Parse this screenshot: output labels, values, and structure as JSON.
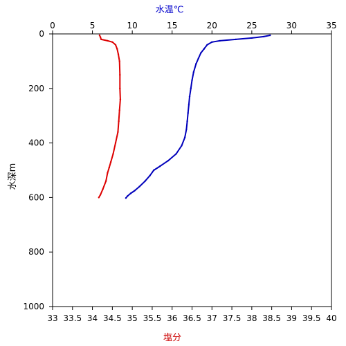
{
  "chart_data": {
    "type": "line",
    "x_top": {
      "label": "水温℃",
      "label_color": "#0000cc",
      "range": [
        0,
        35
      ],
      "ticks": [
        "0",
        "5",
        "10",
        "15",
        "20",
        "25",
        "30",
        "35"
      ]
    },
    "x_bottom": {
      "label": "塩分",
      "label_color": "#cc0000",
      "range": [
        33,
        40
      ],
      "ticks": [
        "33",
        "33.5",
        "34",
        "34.5",
        "35",
        "35.5",
        "36",
        "36.5",
        "37",
        "37.5",
        "38",
        "38.5",
        "39",
        "39.5",
        "40"
      ]
    },
    "y": {
      "label": "水深m",
      "range": [
        0,
        1000
      ],
      "inverted": true,
      "ticks": [
        "0",
        "200",
        "400",
        "600",
        "800",
        "1000"
      ]
    },
    "grid": false,
    "series": [
      {
        "axis": "bottom",
        "color": "#dd0000",
        "points": [
          [
            34.18,
            5
          ],
          [
            34.2,
            12
          ],
          [
            34.22,
            20
          ],
          [
            34.38,
            25
          ],
          [
            34.5,
            30
          ],
          [
            34.58,
            40
          ],
          [
            34.62,
            55
          ],
          [
            34.65,
            75
          ],
          [
            34.68,
            100
          ],
          [
            34.69,
            150
          ],
          [
            34.69,
            200
          ],
          [
            34.7,
            240
          ],
          [
            34.68,
            280
          ],
          [
            34.66,
            320
          ],
          [
            34.64,
            360
          ],
          [
            34.58,
            400
          ],
          [
            34.52,
            440
          ],
          [
            34.46,
            470
          ],
          [
            34.42,
            490
          ],
          [
            34.38,
            510
          ],
          [
            34.34,
            540
          ],
          [
            34.26,
            570
          ],
          [
            34.2,
            590
          ],
          [
            34.16,
            600
          ]
        ]
      },
      {
        "axis": "top",
        "color": "#0000bb",
        "points": [
          [
            27.3,
            5
          ],
          [
            26.5,
            10
          ],
          [
            25,
            15
          ],
          [
            23,
            20
          ],
          [
            21,
            25
          ],
          [
            20,
            30
          ],
          [
            19.4,
            40
          ],
          [
            19,
            55
          ],
          [
            18.6,
            70
          ],
          [
            18.3,
            90
          ],
          [
            18,
            110
          ],
          [
            17.7,
            140
          ],
          [
            17.5,
            170
          ],
          [
            17.35,
            200
          ],
          [
            17.2,
            230
          ],
          [
            17.1,
            260
          ],
          [
            17,
            290
          ],
          [
            16.9,
            320
          ],
          [
            16.8,
            350
          ],
          [
            16.6,
            380
          ],
          [
            16.2,
            410
          ],
          [
            15.5,
            440
          ],
          [
            14.5,
            465
          ],
          [
            13.5,
            485
          ],
          [
            12.7,
            500
          ],
          [
            12.2,
            520
          ],
          [
            11.6,
            540
          ],
          [
            10.9,
            560
          ],
          [
            10.3,
            575
          ],
          [
            9.8,
            585
          ],
          [
            9.4,
            595
          ],
          [
            9.2,
            602
          ]
        ]
      }
    ]
  }
}
